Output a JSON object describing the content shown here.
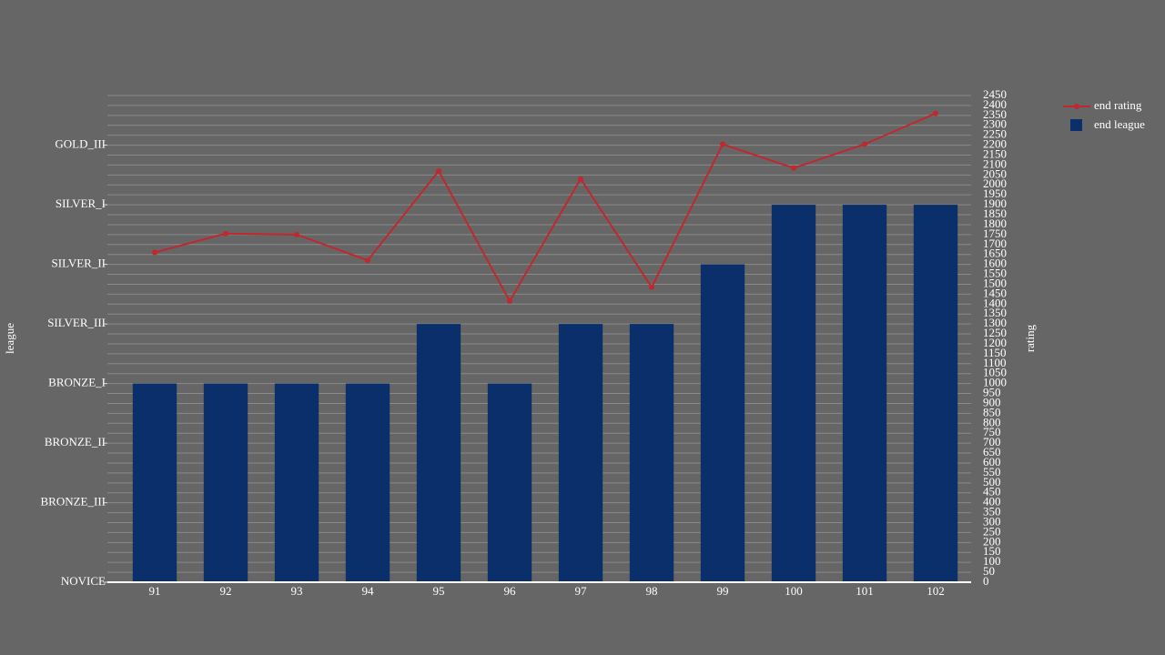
{
  "chart_data": {
    "type": "bar",
    "categories": [
      "91",
      "92",
      "93",
      "94",
      "95",
      "96",
      "97",
      "98",
      "99",
      "100",
      "101",
      "102"
    ],
    "series": [
      {
        "name": "end rating",
        "type": "line",
        "axis": "y2",
        "color": "#c0282d",
        "values": [
          1660,
          1755,
          1750,
          1620,
          2070,
          1415,
          2030,
          1485,
          2205,
          2085,
          2205,
          2360
        ]
      },
      {
        "name": "end league",
        "type": "bar",
        "axis": "y",
        "color": "#0a2f6b",
        "values": [
          1000,
          1000,
          1000,
          1000,
          1300,
          1000,
          1300,
          1300,
          1600,
          1900,
          1900,
          1900
        ]
      }
    ],
    "y_label": "league",
    "y2_label": "rating",
    "ylim": [
      0,
      2450
    ],
    "yticks": [
      {
        "value": 0,
        "label": "NOVICE"
      },
      {
        "value": 400,
        "label": "BRONZE_III"
      },
      {
        "value": 700,
        "label": "BRONZE_II"
      },
      {
        "value": 1000,
        "label": "BRONZE_I"
      },
      {
        "value": 1300,
        "label": "SILVER_III"
      },
      {
        "value": 1600,
        "label": "SILVER_II"
      },
      {
        "value": 1900,
        "label": "SILVER_I"
      },
      {
        "value": 2200,
        "label": "GOLD_III"
      }
    ],
    "y2lim": [
      0,
      2450
    ],
    "y2ticks": [
      0,
      50,
      100,
      150,
      200,
      250,
      300,
      350,
      400,
      450,
      500,
      550,
      600,
      650,
      700,
      750,
      800,
      850,
      900,
      950,
      1000,
      1050,
      1100,
      1150,
      1200,
      1250,
      1300,
      1350,
      1400,
      1450,
      1500,
      1550,
      1600,
      1650,
      1700,
      1750,
      1800,
      1850,
      1900,
      1950,
      2000,
      2050,
      2100,
      2150,
      2200,
      2250,
      2300,
      2350,
      2400,
      2450
    ],
    "grid": true,
    "legend": "top-right"
  }
}
